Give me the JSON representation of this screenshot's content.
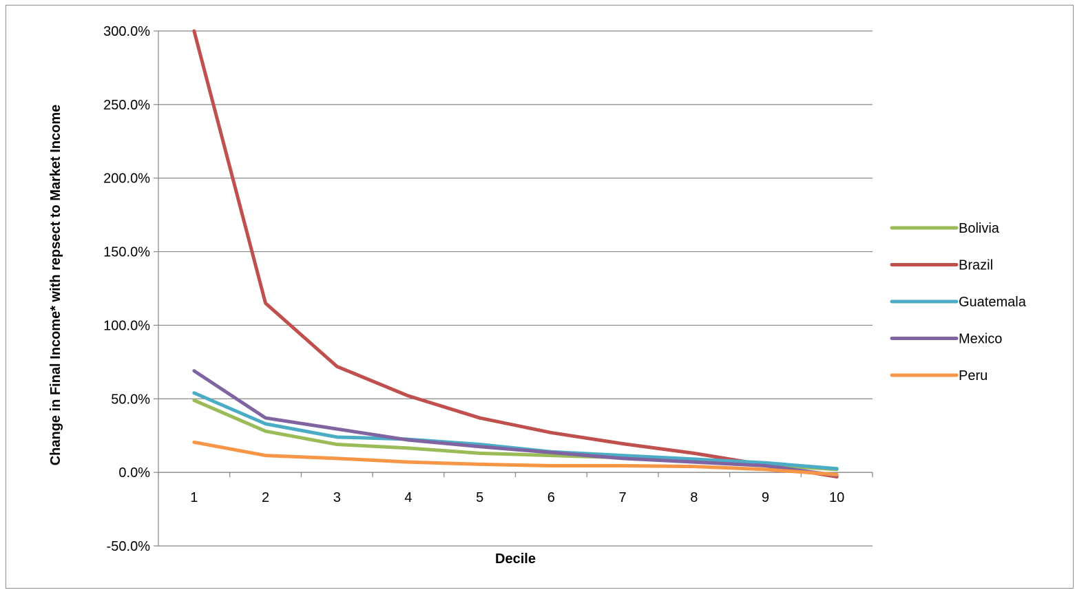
{
  "chart_data": {
    "type": "line",
    "title": "",
    "xlabel": "Decile",
    "ylabel": "Change in Final Income* with repsect to Market Income",
    "categories": [
      "1",
      "2",
      "3",
      "4",
      "5",
      "6",
      "7",
      "8",
      "9",
      "10"
    ],
    "ylim": [
      -50,
      300
    ],
    "yticks": [
      -50,
      0,
      50,
      100,
      150,
      200,
      250,
      300
    ],
    "ytick_labels": [
      "-50.0%",
      "0.0%",
      "50.0%",
      "100.0%",
      "150.0%",
      "200.0%",
      "250.0%",
      "300.0%"
    ],
    "grid": "horizontal",
    "legend_position": "right",
    "series": [
      {
        "name": "Bolivia",
        "color": "#9BBB59",
        "values": [
          49,
          28,
          19,
          16.5,
          13,
          11.5,
          10,
          8,
          5,
          2
        ]
      },
      {
        "name": "Brazil",
        "color": "#C0504D",
        "values": [
          300,
          115,
          72,
          52,
          37,
          27,
          19.5,
          13,
          5,
          -3
        ]
      },
      {
        "name": "Guatemala",
        "color": "#4BACC6",
        "values": [
          54,
          33,
          24,
          22.5,
          19,
          14,
          11.5,
          9,
          6.5,
          2.5
        ]
      },
      {
        "name": "Mexico",
        "color": "#8064A2",
        "values": [
          69,
          37,
          29.5,
          22,
          17.5,
          13.5,
          9.5,
          7,
          4.5,
          -2
        ]
      },
      {
        "name": "Peru",
        "color": "#F79646",
        "values": [
          20.5,
          11.5,
          9.5,
          7,
          5.5,
          4.5,
          4.5,
          4,
          2,
          -1.5
        ]
      }
    ]
  }
}
